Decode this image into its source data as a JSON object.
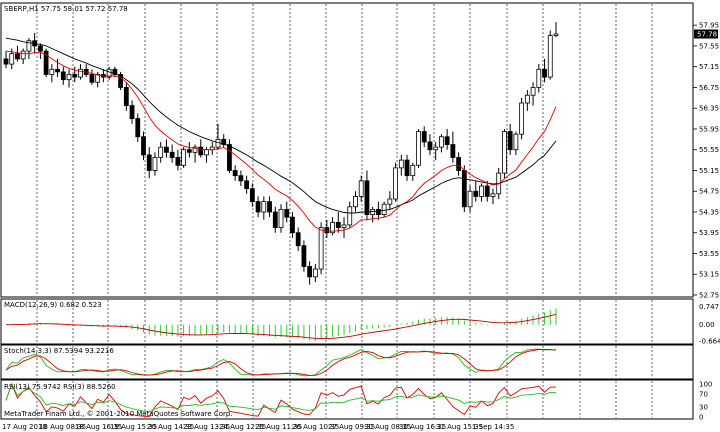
{
  "header": {
    "title": "SBERP,H1  57.75 58.01 57.72 57.78"
  },
  "watermark": "MetaTrader Finam Ltd., © 2001-2010 MetaQuotes Software Corp.",
  "colors": {
    "bull": "#ffffff",
    "bear": "#000000",
    "ma_fast": "#e00000",
    "ma_slow": "#000000",
    "macd_hist": "#33cc33",
    "macd_signal": "#c00000",
    "stoch_main": "#22bb22",
    "stoch_signal": "#e00000",
    "rsi_fast": "#e00000",
    "rsi_slow": "#22bb22",
    "price_tag_bg": "#000000",
    "price_tag_text": "#ffffff"
  },
  "chart_data": [
    {
      "id": "price",
      "type": "candlestick",
      "current_price": "57.78",
      "ylim": [
        52.75,
        58.05
      ],
      "y_ticks": [
        "57.95",
        "57.55",
        "57.15",
        "56.75",
        "56.35",
        "55.95",
        "55.55",
        "55.15",
        "54.75",
        "54.35",
        "53.95",
        "53.55",
        "53.15",
        "52.75"
      ],
      "x_ticks": [
        "17 Aug 2010",
        "18 Aug 08:35",
        "18 Aug 16:35",
        "19 Aug 15:35",
        "20 Aug 14:35",
        "23 Aug 13:35",
        "24 Aug 12:35",
        "25 Aug 11:35",
        "26 Aug 10:35",
        "27 Aug 09:35",
        "30 Aug 08:35",
        "30 Aug 16:35",
        "31 Aug 15:35",
        "1 Sep 14:35"
      ],
      "candles": [
        [
          57.3,
          57.45,
          57.12,
          57.2
        ],
        [
          57.2,
          57.5,
          57.1,
          57.4
        ],
        [
          57.4,
          57.55,
          57.25,
          57.3
        ],
        [
          57.3,
          57.5,
          57.2,
          57.45
        ],
        [
          57.45,
          57.7,
          57.3,
          57.65
        ],
        [
          57.65,
          57.8,
          57.4,
          57.55
        ],
        [
          57.55,
          57.6,
          57.3,
          57.45
        ],
        [
          57.45,
          57.5,
          56.95,
          57.0
        ],
        [
          57.0,
          57.2,
          56.85,
          57.1
        ],
        [
          57.1,
          57.3,
          56.95,
          57.05
        ],
        [
          57.05,
          57.15,
          56.8,
          56.9
        ],
        [
          56.9,
          57.1,
          56.75,
          57.0
        ],
        [
          57.0,
          57.15,
          56.85,
          56.95
        ],
        [
          56.95,
          57.2,
          56.9,
          57.1
        ],
        [
          57.1,
          57.2,
          56.95,
          57.0
        ],
        [
          57.0,
          57.1,
          56.8,
          56.85
        ],
        [
          56.85,
          57.05,
          56.75,
          57.0
        ],
        [
          57.0,
          57.1,
          56.85,
          56.95
        ],
        [
          56.95,
          57.15,
          56.9,
          57.1
        ],
        [
          57.1,
          57.15,
          56.95,
          57.0
        ],
        [
          57.0,
          57.05,
          56.7,
          56.75
        ],
        [
          56.75,
          56.85,
          56.3,
          56.4
        ],
        [
          56.4,
          56.5,
          56.05,
          56.15
        ],
        [
          56.15,
          56.25,
          55.7,
          55.8
        ],
        [
          55.8,
          55.9,
          55.35,
          55.45
        ],
        [
          55.45,
          55.6,
          55.0,
          55.15
        ],
        [
          55.15,
          55.5,
          55.05,
          55.4
        ],
        [
          55.4,
          55.7,
          55.3,
          55.6
        ],
        [
          55.6,
          55.75,
          55.4,
          55.5
        ],
        [
          55.5,
          55.65,
          55.3,
          55.4
        ],
        [
          55.4,
          55.55,
          55.15,
          55.25
        ],
        [
          55.25,
          55.6,
          55.2,
          55.55
        ],
        [
          55.55,
          55.7,
          55.4,
          55.5
        ],
        [
          55.5,
          55.65,
          55.3,
          55.6
        ],
        [
          55.6,
          55.75,
          55.4,
          55.45
        ],
        [
          55.45,
          55.6,
          55.3,
          55.55
        ],
        [
          55.55,
          55.7,
          55.45,
          55.6
        ],
        [
          55.6,
          56.05,
          55.55,
          55.75
        ],
        [
          55.75,
          55.85,
          55.6,
          55.65
        ],
        [
          55.65,
          55.75,
          55.1,
          55.15
        ],
        [
          55.15,
          55.25,
          54.95,
          55.05
        ],
        [
          55.05,
          55.15,
          54.85,
          54.95
        ],
        [
          54.95,
          55.05,
          54.7,
          54.8
        ],
        [
          54.8,
          54.9,
          54.45,
          54.55
        ],
        [
          54.55,
          54.65,
          54.25,
          54.35
        ],
        [
          54.35,
          54.65,
          54.2,
          54.55
        ],
        [
          54.55,
          54.65,
          54.25,
          54.35
        ],
        [
          54.35,
          54.45,
          53.95,
          54.05
        ],
        [
          54.05,
          54.5,
          53.95,
          54.4
        ],
        [
          54.4,
          54.55,
          54.15,
          54.25
        ],
        [
          54.25,
          54.35,
          53.85,
          53.95
        ],
        [
          53.95,
          54.05,
          53.6,
          53.7
        ],
        [
          53.7,
          53.8,
          53.2,
          53.3
        ],
        [
          53.3,
          53.4,
          52.95,
          53.1
        ],
        [
          53.1,
          53.35,
          53.0,
          53.25
        ],
        [
          53.25,
          54.15,
          53.15,
          54.05
        ],
        [
          54.05,
          54.2,
          53.85,
          53.95
        ],
        [
          53.95,
          54.25,
          53.9,
          54.15
        ],
        [
          54.15,
          54.35,
          53.95,
          54.05
        ],
        [
          54.05,
          54.25,
          53.85,
          54.1
        ],
        [
          54.1,
          54.55,
          54.05,
          54.45
        ],
        [
          54.45,
          54.75,
          54.35,
          54.65
        ],
        [
          54.65,
          55.05,
          54.55,
          54.95
        ],
        [
          54.95,
          55.15,
          54.2,
          54.3
        ],
        [
          54.3,
          54.45,
          54.15,
          54.4
        ],
        [
          54.4,
          54.55,
          54.2,
          54.3
        ],
        [
          54.3,
          54.55,
          54.25,
          54.5
        ],
        [
          54.5,
          54.75,
          54.4,
          54.6
        ],
        [
          54.6,
          55.3,
          54.55,
          55.2
        ],
        [
          55.2,
          55.45,
          55.05,
          55.35
        ],
        [
          55.35,
          55.45,
          54.95,
          55.05
        ],
        [
          55.05,
          55.3,
          54.95,
          55.25
        ],
        [
          55.25,
          55.95,
          55.2,
          55.9
        ],
        [
          55.9,
          56.0,
          55.6,
          55.7
        ],
        [
          55.7,
          55.85,
          55.45,
          55.55
        ],
        [
          55.55,
          55.7,
          55.35,
          55.6
        ],
        [
          55.6,
          55.85,
          55.5,
          55.8
        ],
        [
          55.8,
          55.95,
          55.55,
          55.65
        ],
        [
          55.65,
          55.9,
          55.3,
          55.4
        ],
        [
          55.4,
          55.5,
          55.05,
          55.15
        ],
        [
          55.15,
          55.25,
          54.35,
          54.45
        ],
        [
          54.45,
          54.85,
          54.35,
          54.75
        ],
        [
          54.75,
          54.95,
          54.55,
          54.65
        ],
        [
          54.65,
          54.9,
          54.55,
          54.85
        ],
        [
          54.85,
          54.95,
          54.55,
          54.65
        ],
        [
          54.65,
          54.8,
          54.5,
          54.7
        ],
        [
          54.7,
          55.2,
          54.6,
          55.1
        ],
        [
          55.1,
          55.95,
          55.0,
          55.9
        ],
        [
          55.9,
          56.05,
          55.45,
          55.55
        ],
        [
          55.55,
          55.9,
          55.45,
          55.85
        ],
        [
          55.85,
          56.55,
          55.75,
          56.45
        ],
        [
          56.45,
          56.7,
          56.3,
          56.6
        ],
        [
          56.6,
          56.85,
          56.4,
          56.75
        ],
        [
          56.75,
          57.2,
          56.65,
          57.1
        ],
        [
          57.1,
          57.3,
          56.85,
          56.95
        ],
        [
          56.95,
          57.85,
          56.9,
          57.75
        ],
        [
          57.75,
          58.01,
          57.72,
          57.78
        ]
      ],
      "ma_fast": [
        57.45,
        57.44,
        57.42,
        57.4,
        57.4,
        57.42,
        57.43,
        57.38,
        57.3,
        57.23,
        57.17,
        57.12,
        57.08,
        57.06,
        57.05,
        57.02,
        56.99,
        56.97,
        56.97,
        56.97,
        56.94,
        56.85,
        56.72,
        56.56,
        56.38,
        56.18,
        56.02,
        55.91,
        55.82,
        55.74,
        55.66,
        55.62,
        55.59,
        55.58,
        55.56,
        55.55,
        55.55,
        55.57,
        55.59,
        55.53,
        55.45,
        55.36,
        55.27,
        55.17,
        55.06,
        54.98,
        54.89,
        54.79,
        54.72,
        54.66,
        54.57,
        54.46,
        54.33,
        54.18,
        54.06,
        54.0,
        53.98,
        53.98,
        53.99,
        54.0,
        54.04,
        54.11,
        54.2,
        54.2,
        54.22,
        54.23,
        54.25,
        54.29,
        54.39,
        54.49,
        54.55,
        54.64,
        54.79,
        54.9,
        54.98,
        55.06,
        55.15,
        55.21,
        55.25,
        55.25,
        55.16,
        55.08,
        55.01,
        54.96,
        54.91,
        54.87,
        54.89,
        54.99,
        55.08,
        55.16,
        55.31,
        55.46,
        55.6,
        55.77,
        55.9,
        56.13,
        56.38
      ],
      "ma_slow": [
        57.7,
        57.68,
        57.66,
        57.63,
        57.61,
        57.6,
        57.58,
        57.55,
        57.5,
        57.45,
        57.4,
        57.35,
        57.3,
        57.26,
        57.22,
        57.17,
        57.13,
        57.09,
        57.05,
        57.01,
        56.97,
        56.9,
        56.82,
        56.72,
        56.6,
        56.48,
        56.37,
        56.27,
        56.18,
        56.1,
        56.02,
        55.96,
        55.9,
        55.85,
        55.8,
        55.76,
        55.72,
        55.69,
        55.66,
        55.62,
        55.57,
        55.51,
        55.45,
        55.38,
        55.31,
        55.25,
        55.18,
        55.11,
        55.04,
        54.98,
        54.91,
        54.83,
        54.74,
        54.64,
        54.55,
        54.49,
        54.44,
        54.4,
        54.37,
        54.34,
        54.33,
        54.33,
        54.35,
        54.35,
        54.36,
        54.37,
        54.38,
        54.4,
        54.44,
        54.49,
        54.53,
        54.58,
        54.66,
        54.72,
        54.78,
        54.84,
        54.9,
        54.95,
        54.99,
        55.01,
        54.99,
        54.97,
        54.95,
        54.93,
        54.91,
        54.89,
        54.9,
        54.94,
        54.98,
        55.02,
        55.1,
        55.18,
        55.26,
        55.36,
        55.44,
        55.58,
        55.72
      ]
    },
    {
      "id": "macd",
      "type": "histogram+line",
      "label": "MACD(12,26,9) 0.682 0.523",
      "y_ticks": [
        "0.747",
        "0.00",
        "-0.664"
      ],
      "ylim": [
        -0.7,
        0.8
      ]
    },
    {
      "id": "stochastic",
      "type": "line",
      "label": "Stoch(14,3,3) 87.5394 93.2216",
      "ylim": [
        0,
        100
      ]
    },
    {
      "id": "rsi",
      "type": "line",
      "label": "RSI(13) 75.9742  RSI(3) 88.5260",
      "y_ticks": [
        "100",
        "70",
        "30",
        "0"
      ],
      "ylim": [
        0,
        100
      ]
    }
  ]
}
